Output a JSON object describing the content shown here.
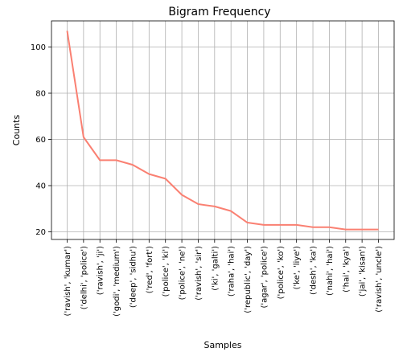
{
  "chart_data": {
    "type": "line",
    "title": "Bigram Frequency",
    "xlabel": "Samples",
    "ylabel": "Counts",
    "categories": [
      "('ravish', 'kumar')",
      "('delhi', 'police')",
      "('ravish', 'ji')",
      "('godi', 'medium')",
      "('deep', 'sidhu')",
      "('red', 'fort')",
      "('police', 'ki')",
      "('police', 'ne')",
      "('ravish', 'sir')",
      "('ki', 'galti')",
      "('raha', 'hai')",
      "('republic', 'day')",
      "('agar', 'police')",
      "('police', 'ko')",
      "('ke', 'liye')",
      "('desh', 'ka')",
      "('nahi', 'hai')",
      "('hai', 'kya')",
      "('jai', 'kisan')",
      "('ravish', 'uncle')"
    ],
    "values": [
      107,
      61,
      51,
      51,
      49,
      45,
      43,
      36,
      32,
      31,
      29,
      24,
      23,
      23,
      23,
      22,
      22,
      21,
      21,
      21
    ],
    "ylim": [
      16.7,
      111.3
    ],
    "yticks": [
      20,
      40,
      60,
      80,
      100
    ],
    "grid": true,
    "line_color": "#fa8072"
  }
}
